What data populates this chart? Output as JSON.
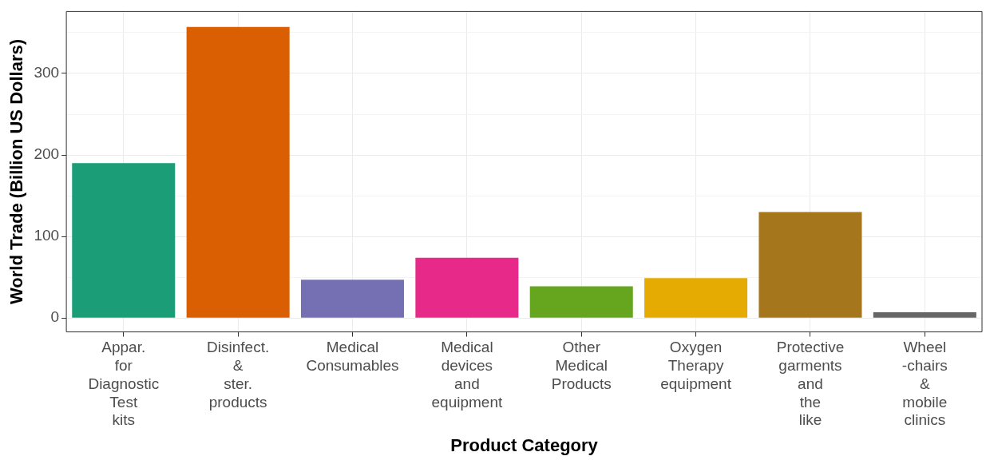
{
  "chart_data": {
    "type": "bar",
    "xlabel": "Product Category",
    "ylabel": "World Trade (Billion US Dollars)",
    "categories": [
      "Appar.\nfor\nDiagnostic\nTest\nkits",
      "Disinfect.\n&\nster.\nproducts",
      "Medical\nConsumables",
      "Medical\ndevices\nand\nequipment",
      "Other\nMedical\nProducts",
      "Oxygen\nTherapy\nequipment",
      "Protective\ngarments\nand\nthe\nlike",
      "Wheel\n-chairs\n&\nmobile\nclinics"
    ],
    "values": [
      190,
      357,
      47,
      74,
      39,
      49,
      130,
      7
    ],
    "colors": [
      "#1b9e77",
      "#d95f02",
      "#7570b3",
      "#e7298a",
      "#66a61e",
      "#e6ab02",
      "#a6761d",
      "#666666"
    ],
    "ylim": [
      -17,
      376
    ],
    "yticks": [
      0,
      {
        "value": 50,
        "label": null
      },
      100,
      {
        "value": 150,
        "label": null
      },
      200,
      {
        "value": 250,
        "label": null
      },
      300,
      {
        "value": 350,
        "label": null
      }
    ],
    "grid": true,
    "legend": false
  }
}
